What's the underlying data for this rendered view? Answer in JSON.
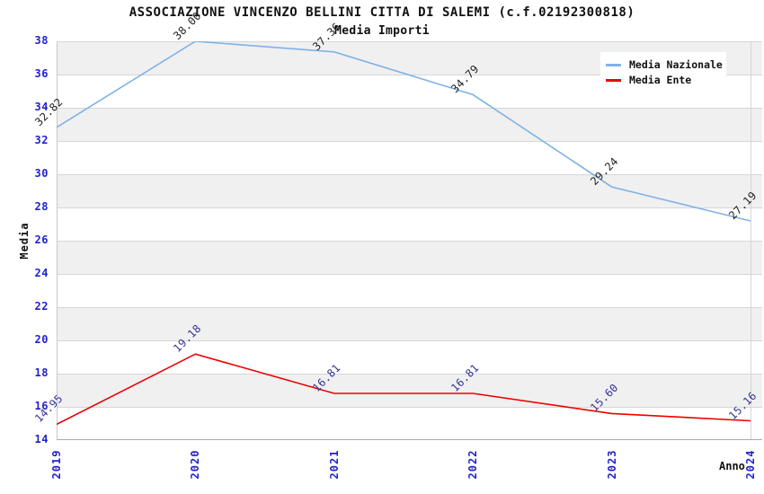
{
  "header": {
    "title": "ASSOCIAZIONE VINCENZO BELLINI CITTA DI SALEMI (c.f.02192300818)",
    "subtitle": "Media Importi"
  },
  "chart_data": {
    "type": "line",
    "x_categories": [
      "2019",
      "2020",
      "2021",
      "2022",
      "2023",
      "2024"
    ],
    "series": [
      {
        "name": "Media Nazionale",
        "color": "#7FB2E6",
        "label_color": "#222222",
        "values": [
          32.82,
          38.0,
          37.36,
          34.79,
          29.24,
          27.19
        ],
        "labels": [
          "32.82",
          "38.00",
          "37.36",
          "34.79",
          "29.24",
          "27.19"
        ]
      },
      {
        "name": "Media Ente",
        "color": "#EE0000",
        "label_color": "#333399",
        "values": [
          14.95,
          19.18,
          16.81,
          16.81,
          15.6,
          15.16
        ],
        "labels": [
          "14.95",
          "19.18",
          "16.81",
          "16.81",
          "15.60",
          "15.16"
        ]
      }
    ],
    "xlabel": "Anno",
    "ylabel": "Media",
    "ylim": [
      14,
      38
    ],
    "yticks": [
      14,
      16,
      18,
      20,
      22,
      24,
      26,
      28,
      30,
      32,
      34,
      36,
      38
    ],
    "grid": "horizontal-bands",
    "legend_position": "top-right"
  },
  "colors": {
    "tick_label": "#2222cc",
    "band_gray": "#f0f0f0",
    "gridline": "#d6d6d6",
    "axis_border": "#aaaaaa",
    "text": "#111111"
  }
}
